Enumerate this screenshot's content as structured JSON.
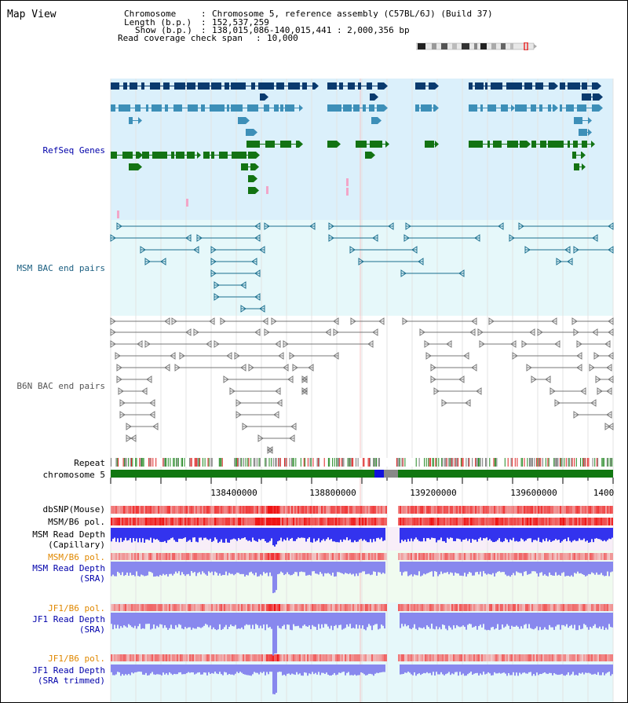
{
  "page_title": "Map View",
  "header": {
    "chromosome_label": "Chromosome",
    "chromosome_value": "Chromosome 5, reference assembly (C57BL/6J) (Build 37)",
    "length_label": "Length (b.p.)",
    "length_value": "152,537,259",
    "show_label": "Show (b.p.)",
    "show_value": "138,015,086-140,015,441 : 2,000,356 bp",
    "coverage_label": "Read coverage check span",
    "coverage_value": "10,000"
  },
  "tracks": {
    "refseq": "RefSeq Genes",
    "msm_bac": "MSM BAC end pairs",
    "b6n_bac": "B6N BAC end pairs",
    "repeat": "Repeat",
    "chromosome": "chromosome 5",
    "dbsnp": "dbSNP(Mouse)",
    "msm_b6_pol": "MSM/B6 pol.",
    "msm_depth_cap_1": "MSM Read Depth",
    "msm_depth_cap_2": "(Capillary)",
    "msm_b6_pol_sra": "MSM/B6 pol.",
    "msm_depth_sra_1": "MSM Read Depth",
    "msm_depth_sra_2": "(SRA)",
    "jf1_b6_pol": "JF1/B6 pol.",
    "jf1_depth_sra_1": "JF1 Read Depth",
    "jf1_depth_sra_2": "(SRA)",
    "jf1_b6_pol_2": "JF1/B6 pol.",
    "jf1_depth_trim_1": "JF1 Read Depth",
    "jf1_depth_trim_2": "(SRA trimmed)"
  },
  "axis": {
    "ticks": [
      "138400000",
      "138800000",
      "139200000",
      "139600000",
      "1400"
    ]
  },
  "colors": {
    "refseq_bg": "#dbf0fb",
    "bac_bg": "#e6f8fa",
    "gene_dark": "#0a3a6e",
    "gene_mid": "#3d8fb8",
    "gene_green": "#137313",
    "msm_bac": "#1a6e8e",
    "b6n_bac": "#777777",
    "chrom_green": "#117711",
    "chrom_blue": "#1111dd",
    "depth_blue": "#3333ee",
    "depth_light": "#8888ee"
  }
}
